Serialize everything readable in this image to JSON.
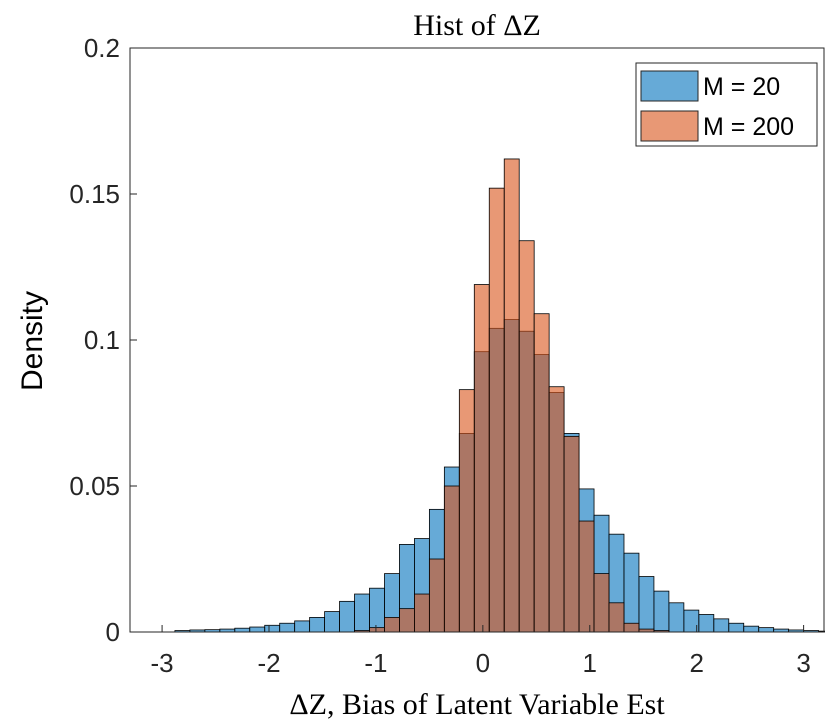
{
  "chart_data": {
    "type": "histogram",
    "title": "Hist of ΔZ",
    "xlabel": "ΔZ, Bias of Latent Variable Est",
    "ylabel": "Density",
    "xlim": [
      -3.3,
      3.2
    ],
    "ylim": [
      0,
      0.2
    ],
    "xticks": [
      -3,
      -2,
      -1,
      0,
      1,
      2,
      3
    ],
    "yticks": [
      0,
      0.05,
      0.1,
      0.15,
      0.2
    ],
    "ytick_labels": [
      "0",
      "0.05",
      "0.1",
      "0.15",
      "0.2"
    ],
    "grid": false,
    "legend_position": "top-right",
    "bin_width": 0.14,
    "bin_start": -2.88,
    "series": [
      {
        "name": "M = 20",
        "color": "#0072BD",
        "values": [
          0.0005,
          0.0007,
          0.0008,
          0.001,
          0.0013,
          0.0017,
          0.0023,
          0.003,
          0.0038,
          0.005,
          0.007,
          0.0105,
          0.013,
          0.015,
          0.02,
          0.03,
          0.032,
          0.042,
          0.0565,
          0.068,
          0.096,
          0.104,
          0.107,
          0.103,
          0.095,
          0.082,
          0.068,
          0.049,
          0.04,
          0.0335,
          0.027,
          0.019,
          0.014,
          0.01,
          0.0075,
          0.006,
          0.0045,
          0.003,
          0.002,
          0.0015,
          0.001,
          0.0007,
          0.0005,
          0.0003
        ]
      },
      {
        "name": "M = 200",
        "color": "#D95319",
        "values": [
          0,
          0,
          0,
          0,
          0,
          0,
          0,
          0,
          0,
          0,
          0,
          0,
          0.0005,
          0.0015,
          0.005,
          0.008,
          0.013,
          0.025,
          0.05,
          0.083,
          0.119,
          0.152,
          0.162,
          0.134,
          0.109,
          0.084,
          0.067,
          0.038,
          0.02,
          0.01,
          0.003,
          0.001,
          0.0005,
          0,
          0,
          0,
          0,
          0,
          0,
          0,
          0,
          0,
          0,
          0
        ]
      }
    ]
  }
}
